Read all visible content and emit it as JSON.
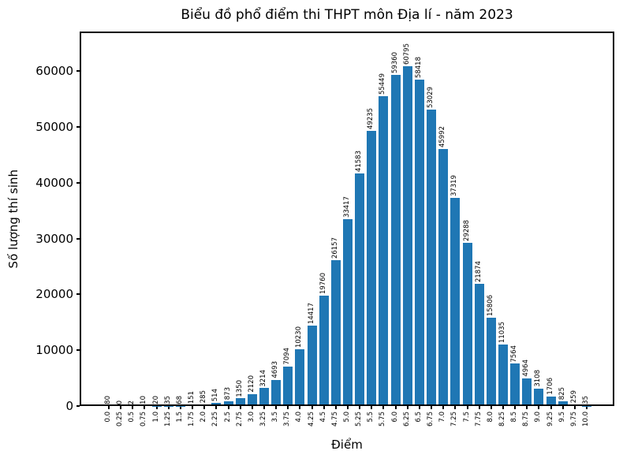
{
  "chart_data": {
    "type": "bar",
    "title": "Biểu đồ phổ điểm thi THPT môn Địa lí - năm 2023",
    "xlabel": "Điểm",
    "ylabel": "Số lượng thí sinh",
    "bar_color": "#1f77b4",
    "grid": false,
    "legend": "none",
    "categories": [
      "0.0",
      "0.25",
      "0.5",
      "0.75",
      "1.0",
      "1.25",
      "1.5",
      "1.75",
      "2.0",
      "2.25",
      "2.5",
      "2.75",
      "3.0",
      "3.25",
      "3.5",
      "3.75",
      "4.0",
      "4.25",
      "4.5",
      "4.75",
      "5.0",
      "5.25",
      "5.5",
      "5.75",
      "6.0",
      "6.25",
      "6.5",
      "6.75",
      "7.0",
      "7.25",
      "7.5",
      "7.75",
      "8.0",
      "8.25",
      "8.5",
      "8.75",
      "9.0",
      "9.25",
      "9.5",
      "9.75",
      "10.0"
    ],
    "values": [
      80,
      0,
      2,
      10,
      20,
      35,
      68,
      151,
      285,
      514,
      873,
      1350,
      2120,
      3214,
      4693,
      7094,
      10230,
      14417,
      19760,
      26157,
      33417,
      41583,
      49235,
      55449,
      59360,
      60795,
      58418,
      53029,
      45992,
      37319,
      29288,
      21874,
      15806,
      11035,
      7564,
      4964,
      3108,
      1706,
      825,
      259,
      35
    ],
    "yticks": [
      0,
      10000,
      20000,
      30000,
      40000,
      50000,
      60000
    ],
    "ylim": [
      0,
      67000
    ]
  }
}
